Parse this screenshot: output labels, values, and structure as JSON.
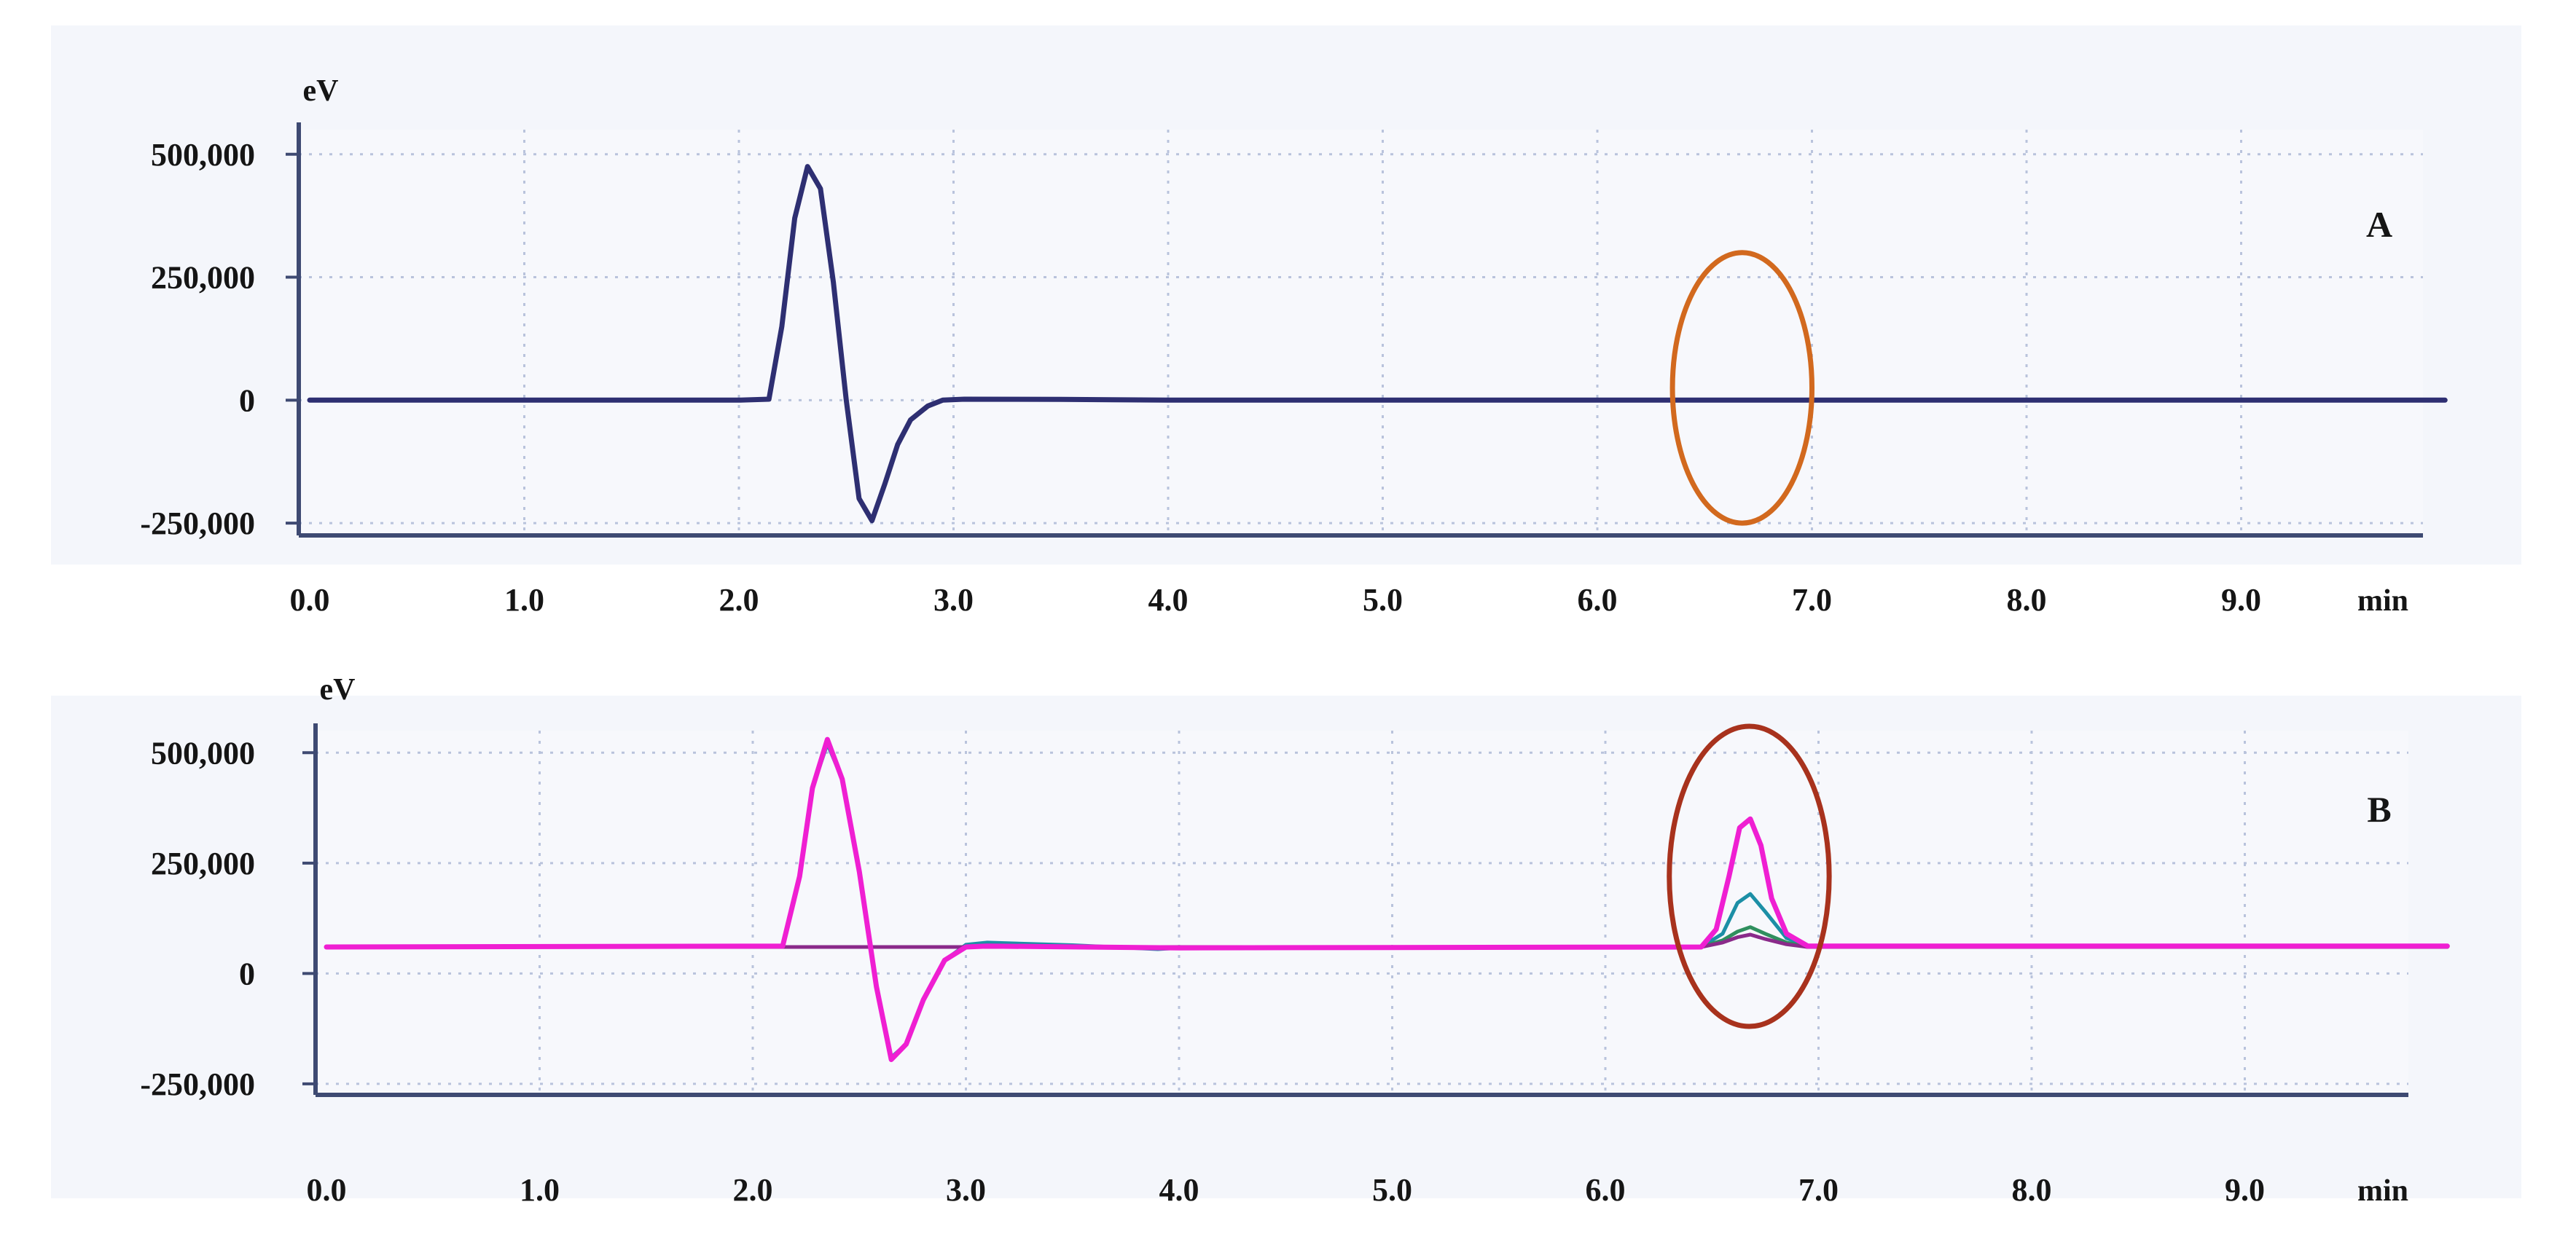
{
  "chart_data": [
    {
      "type": "line",
      "panel_label": "A",
      "ylabel": "eV",
      "xlabel": "min",
      "xlim": [
        0,
        9.95
      ],
      "ylim": [
        -275000,
        550000
      ],
      "x_ticks": [
        "0.0",
        "1.0",
        "2.0",
        "3.0",
        "4.0",
        "5.0",
        "6.0",
        "7.0",
        "8.0",
        "9.0"
      ],
      "y_ticks": [
        {
          "value": 500000,
          "label": "500,000"
        },
        {
          "value": 250000,
          "label": "250,000"
        },
        {
          "value": 0,
          "label": "0"
        },
        {
          "value": -250000,
          "label": "-250,000"
        }
      ],
      "grid": true,
      "baseline": 0,
      "series": [
        {
          "color": "#2e2f72",
          "x": [
            0,
            2.0,
            2.14,
            2.2,
            2.26,
            2.32,
            2.38,
            2.44,
            2.5,
            2.56,
            2.62,
            2.68,
            2.74,
            2.8,
            2.88,
            2.95,
            3.05,
            3.5,
            4.0,
            9.95
          ],
          "y": [
            0,
            0,
            2000,
            150000,
            370000,
            475000,
            430000,
            240000,
            0,
            -200000,
            -245000,
            -170000,
            -90000,
            -40000,
            -12000,
            0,
            2000,
            1500,
            0,
            0
          ]
        }
      ],
      "highlight": {
        "type": "ellipse",
        "x_range": [
          6.35,
          7.0
        ],
        "y_range": [
          -250000,
          300000
        ],
        "color": "#d2691e"
      }
    },
    {
      "type": "line",
      "panel_label": "B",
      "ylabel": "eV",
      "xlabel": "min",
      "xlim": [
        0,
        9.95
      ],
      "ylim": [
        -275000,
        550000
      ],
      "x_ticks": [
        "0.0",
        "1.0",
        "2.0",
        "3.0",
        "4.0",
        "5.0",
        "6.0",
        "7.0",
        "8.0",
        "9.0"
      ],
      "y_ticks": [
        {
          "value": 500000,
          "label": "500,000"
        },
        {
          "value": 250000,
          "label": "250,000"
        },
        {
          "value": 0,
          "label": "0"
        },
        {
          "value": -250000,
          "label": "-250,000"
        }
      ],
      "grid": true,
      "baseline": 60000,
      "series": [
        {
          "color": "#1c8fa6",
          "x": [
            0,
            2.14,
            2.22,
            2.28,
            2.35,
            2.42,
            2.5,
            2.58,
            2.65,
            2.72,
            2.8,
            2.9,
            3.0,
            3.1,
            3.5,
            3.9,
            4.0,
            6.45,
            6.55,
            6.62,
            6.68,
            6.75,
            6.85,
            6.95,
            9.95
          ],
          "y": [
            60000,
            62000,
            220000,
            420000,
            520000,
            440000,
            230000,
            -30000,
            -190000,
            -160000,
            -60000,
            30000,
            65000,
            70000,
            64000,
            55000,
            58000,
            60000,
            90000,
            160000,
            180000,
            140000,
            80000,
            62000,
            62000
          ]
        },
        {
          "color": "#2f8f5e",
          "x": [
            0,
            6.45,
            6.55,
            6.62,
            6.68,
            6.75,
            6.85,
            6.95,
            9.95
          ],
          "y": [
            60000,
            60000,
            75000,
            95000,
            105000,
            90000,
            70000,
            60000,
            60000
          ]
        },
        {
          "color": "#8a2a8a",
          "x": [
            0,
            6.45,
            6.55,
            6.62,
            6.68,
            6.75,
            6.85,
            6.95,
            9.95
          ],
          "y": [
            60000,
            60000,
            70000,
            82000,
            88000,
            78000,
            66000,
            60000,
            60000
          ]
        },
        {
          "color": "#ef1fd2",
          "x": [
            0,
            2.14,
            2.22,
            2.28,
            2.35,
            2.42,
            2.5,
            2.58,
            2.65,
            2.72,
            2.8,
            2.9,
            3.0,
            3.1,
            4.0,
            6.45,
            6.52,
            6.58,
            6.63,
            6.68,
            6.73,
            6.78,
            6.85,
            6.95,
            9.95
          ],
          "y": [
            60000,
            62000,
            220000,
            420000,
            530000,
            440000,
            230000,
            -30000,
            -195000,
            -160000,
            -60000,
            30000,
            60000,
            62000,
            58000,
            60000,
            100000,
            220000,
            330000,
            350000,
            290000,
            170000,
            90000,
            62000,
            62000
          ]
        }
      ],
      "highlight": {
        "type": "ellipse",
        "x_range": [
          6.3,
          7.05
        ],
        "y_range": [
          -120000,
          560000
        ],
        "color": "#a8321d"
      }
    }
  ]
}
